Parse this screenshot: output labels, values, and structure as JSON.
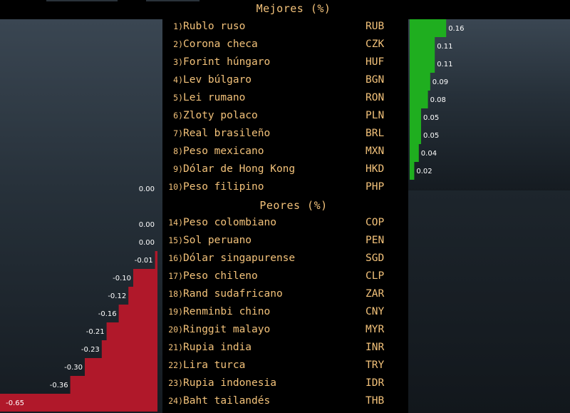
{
  "chart_data": [
    {
      "type": "bar",
      "orientation": "horizontal",
      "title": "Mejores (%)",
      "direction": "right",
      "color": "#1fae1f",
      "categories": [
        "Rublo ruso",
        "Corona checa",
        "Forint húngaro",
        "Lev búlgaro",
        "Lei rumano",
        "Zloty polaco",
        "Real brasileño",
        "Peso mexicano",
        "Dólar de Hong Kong",
        "Peso filipino"
      ],
      "ranks": [
        "1)",
        "2)",
        "3)",
        "4)",
        "5)",
        "6)",
        "7)",
        "8)",
        "9)",
        "10)"
      ],
      "codes": [
        "RUB",
        "CZK",
        "HUF",
        "BGN",
        "RON",
        "PLN",
        "BRL",
        "MXN",
        "HKD",
        "PHP"
      ],
      "values": [
        0.16,
        0.11,
        0.11,
        0.09,
        0.08,
        0.05,
        0.05,
        0.04,
        0.02,
        0.0
      ],
      "value_labels": [
        "0.16",
        "0.11",
        "0.11",
        "0.09",
        "0.08",
        "0.05",
        "0.05",
        "0.04",
        "0.02",
        "0.00"
      ]
    },
    {
      "type": "bar",
      "orientation": "horizontal",
      "title": "Peores (%)",
      "direction": "left",
      "color": "#b0182a",
      "categories": [
        "Peso colombiano",
        "Sol peruano",
        "Dólar singapurense",
        "Peso chileno",
        "Rand sudafricano",
        "Renminbi chino",
        "Ringgit malayo",
        "Rupia india",
        "Lira turca",
        "Rupia indonesia",
        "Baht tailandés"
      ],
      "ranks": [
        "14)",
        "15)",
        "16)",
        "17)",
        "18)",
        "19)",
        "20)",
        "21)",
        "22)",
        "23)",
        "24)"
      ],
      "codes": [
        "COP",
        "PEN",
        "SGD",
        "CLP",
        "ZAR",
        "CNY",
        "MYR",
        "INR",
        "TRY",
        "IDR",
        "THB"
      ],
      "values": [
        0.0,
        0.0,
        -0.01,
        -0.1,
        -0.12,
        -0.16,
        -0.21,
        -0.23,
        -0.3,
        -0.36,
        -0.65
      ],
      "value_labels": [
        "0.00",
        "0.00",
        "-0.01",
        "-0.10",
        "-0.12",
        "-0.16",
        "-0.21",
        "-0.23",
        "-0.30",
        "-0.36",
        "-0.65"
      ]
    }
  ],
  "colors": {
    "text": "#f3c27a",
    "positive": "#1fae1f",
    "negative": "#b0182a"
  }
}
